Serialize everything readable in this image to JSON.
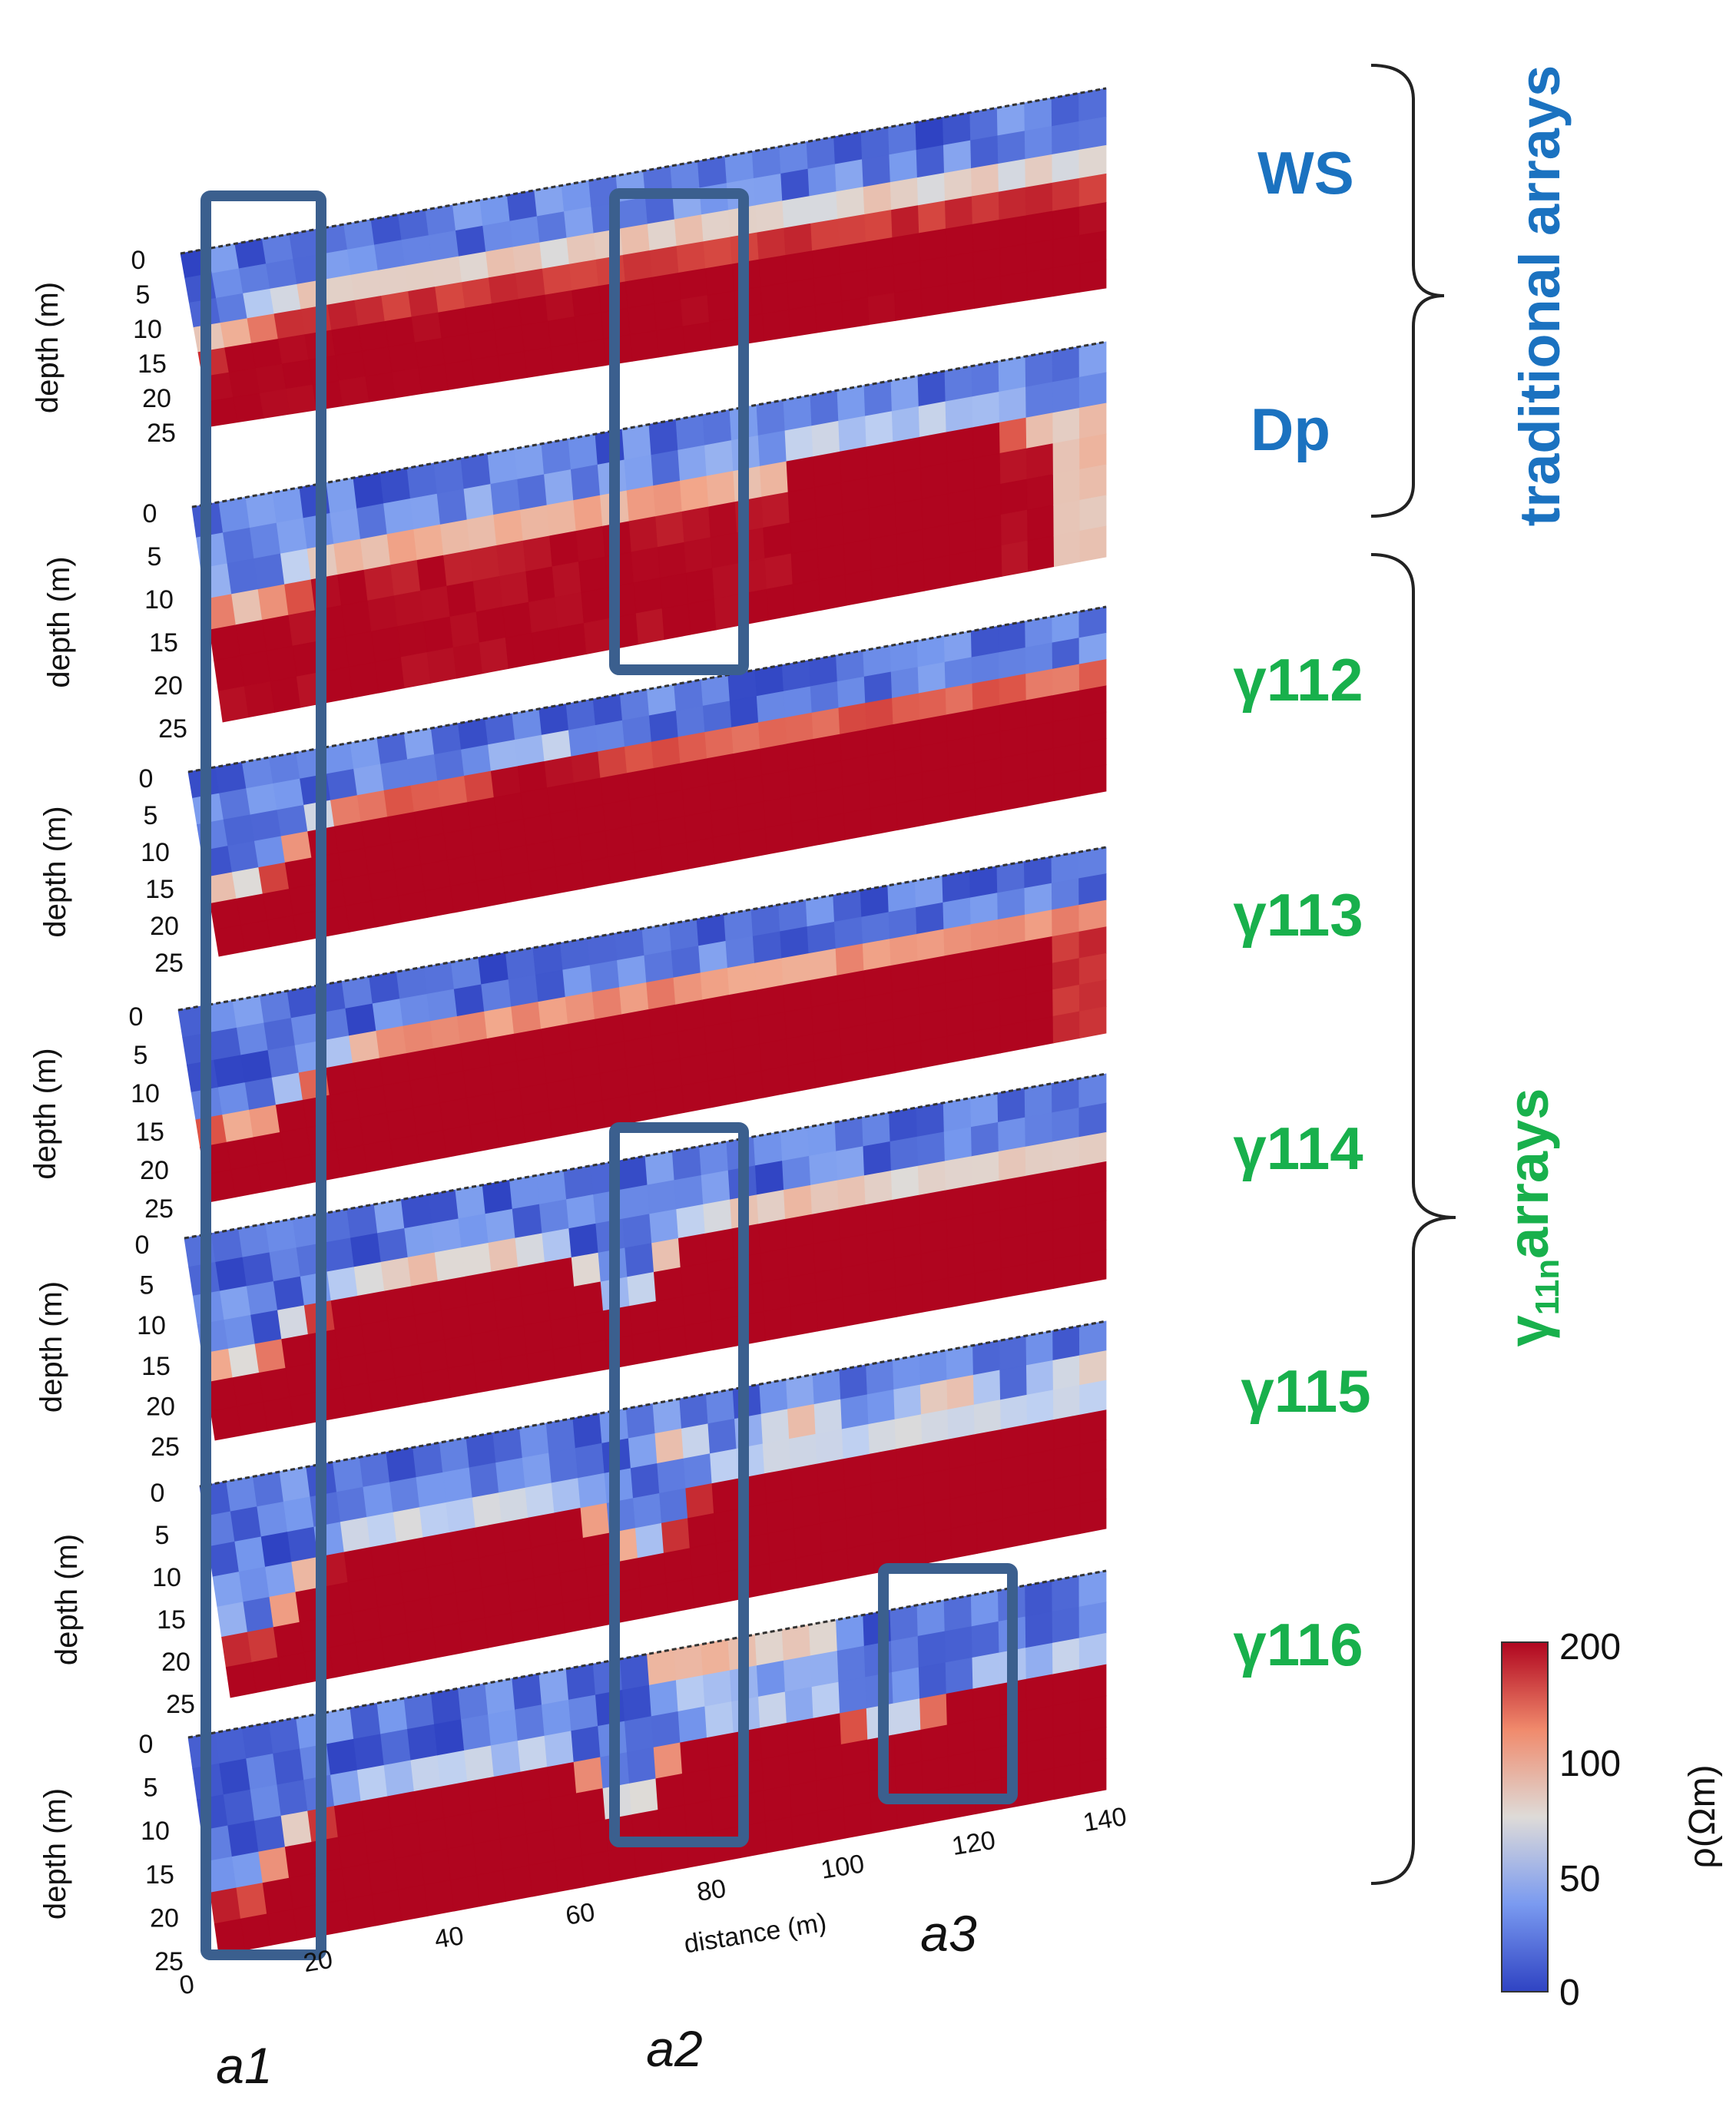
{
  "figure": {
    "colors": {
      "low": "#2f43c3",
      "mid": "#dedbd8",
      "high": "#b0051f",
      "traditional_label": "#1b72c0",
      "gamma_label": "#18b04c",
      "box": "#3b5f8e"
    },
    "panels": [
      {
        "id": "ws",
        "label": "WS",
        "group": "traditional",
        "profile": "ws"
      },
      {
        "id": "dp",
        "label": "Dp",
        "group": "traditional",
        "profile": "dp"
      },
      {
        "id": "g112",
        "label": "γ112",
        "group": "gamma",
        "profile": "g112"
      },
      {
        "id": "g113",
        "label": "γ113",
        "group": "gamma",
        "profile": "g113"
      },
      {
        "id": "g114",
        "label": "γ114",
        "group": "gamma",
        "profile": "g114"
      },
      {
        "id": "g115",
        "label": "γ115",
        "group": "gamma",
        "profile": "g115"
      },
      {
        "id": "g116",
        "label": "γ116",
        "group": "gamma",
        "profile": "g116"
      }
    ],
    "depth_axis": {
      "title": "depth (m)",
      "ticks": [
        "0",
        "5",
        "10",
        "15",
        "20",
        "25"
      ]
    },
    "distance_axis": {
      "title": "distance (m)",
      "ticks": [
        "0",
        "20",
        "40",
        "60",
        "80",
        "100",
        "120",
        "140"
      ]
    },
    "groups": {
      "traditional": {
        "word1": "traditional",
        "word2": "arrays"
      },
      "gamma": {
        "sym": "γ",
        "sub": "11n",
        "word": "arrays"
      }
    },
    "zones": [
      "a1",
      "a2",
      "a3"
    ],
    "colorbar": {
      "ticks": [
        "200",
        "100",
        "50",
        "0"
      ],
      "label": "ρ(Ωm)",
      "min": 0,
      "max": 200
    }
  }
}
